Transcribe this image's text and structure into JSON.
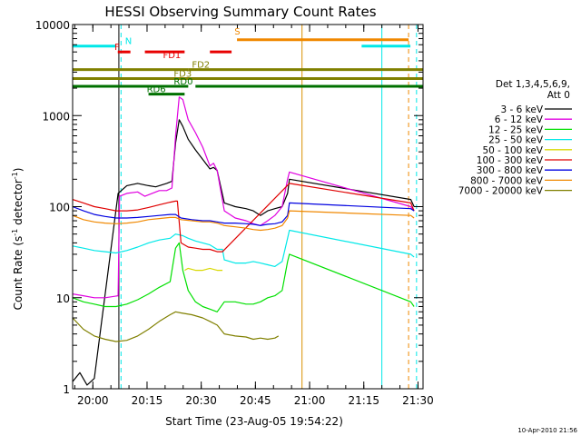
{
  "chart_data": {
    "type": "line",
    "title": "HESSI Observing Summary Count Rates",
    "xlabel": "Start Time (23-Aug-05 19:54:22)",
    "ylabel_main": "Count Rate (s",
    "ylabel_sup1": "-1",
    "ylabel_mid": " detector",
    "ylabel_sup2": "-1",
    "ylabel_end": ")",
    "footer": "10-Apr-2010 21:56",
    "y_scale": "log",
    "ylim": [
      1,
      10000
    ],
    "xlim_min": [
      0,
      97
    ],
    "y_ticks": [
      {
        "value": 1,
        "label": "1"
      },
      {
        "value": 10,
        "label": "10"
      },
      {
        "value": 100,
        "label": "100"
      },
      {
        "value": 1000,
        "label": "1000"
      },
      {
        "value": 10000,
        "label": "10000"
      }
    ],
    "x_ticks": [
      {
        "min": 5.6,
        "label": "20:00"
      },
      {
        "min": 20.6,
        "label": "20:15"
      },
      {
        "min": 35.6,
        "label": "20:30"
      },
      {
        "min": 50.6,
        "label": "20:45"
      },
      {
        "min": 65.6,
        "label": "21:00"
      },
      {
        "min": 80.6,
        "label": "21:15"
      },
      {
        "min": 95.6,
        "label": "21:30"
      }
    ],
    "legend": {
      "header1": "Det 1,3,4,5,6,9,",
      "header2": "Att 0",
      "placement": "right",
      "entries": [
        {
          "label": "3 - 6 keV",
          "color": "#000000"
        },
        {
          "label": "6 - 12 keV",
          "color": "#e000e0"
        },
        {
          "label": "12 - 25 keV",
          "color": "#00e000"
        },
        {
          "label": "25 - 50 keV",
          "color": "#00e8e8"
        },
        {
          "label": "50 - 100 keV",
          "color": "#d8d800"
        },
        {
          "label": "100 - 300 keV",
          "color": "#e00000"
        },
        {
          "label": "300 - 800 keV",
          "color": "#0000e0"
        },
        {
          "label": "800 - 7000 keV",
          "color": "#f08800"
        },
        {
          "label": "7000 - 20000 keV",
          "color": "#808000"
        }
      ]
    },
    "flags": [
      {
        "label": "N",
        "color": "#00e8e8",
        "segments": [
          [
            0,
            12
          ],
          [
            80,
            93.5
          ]
        ],
        "y": 5800
      },
      {
        "label": "F",
        "color": "#e80000",
        "segments": [
          [
            12.5,
            16
          ],
          [
            20,
            31
          ],
          [
            38,
            44
          ]
        ],
        "y": 5000
      },
      {
        "label": "S",
        "color": "#f08800",
        "segments": [
          [
            45.5,
            93
          ]
        ],
        "y": 6800
      },
      {
        "label": "FD1",
        "color": "#e80000",
        "segments": [],
        "y": 4100
      },
      {
        "label": "FD2",
        "color": "#808000",
        "segments": [
          [
            0,
            32
          ],
          [
            32,
            97
          ]
        ],
        "y": 3200
      },
      {
        "label": "FD3",
        "color": "#808000",
        "segments": [
          [
            0,
            97
          ]
        ],
        "y": 2550
      },
      {
        "label": "RD0",
        "color": "#007000",
        "segments": [
          [
            0,
            32
          ],
          [
            34,
            97
          ]
        ],
        "y": 2100
      },
      {
        "label": "RD6",
        "color": "#007000",
        "segments": [
          [
            21,
            31
          ]
        ],
        "y": 1720
      }
    ],
    "vlines": [
      {
        "min": 0,
        "color": "#00e8e8",
        "style": "dashed"
      },
      {
        "min": 13.4,
        "color": "#00e8e8",
        "style": "dashed"
      },
      {
        "min": 12.8,
        "color": "#000000",
        "style": "solid"
      },
      {
        "min": 63.5,
        "color": "#d89000",
        "style": "solid"
      },
      {
        "min": 85.6,
        "color": "#00e8e8",
        "style": "solid"
      },
      {
        "min": 93.0,
        "color": "#f08800",
        "style": "dashed"
      },
      {
        "min": 95.2,
        "color": "#00e8e8",
        "style": "dashed"
      }
    ],
    "series": [
      {
        "name": "3 - 6 keV",
        "color": "#000000",
        "points": [
          [
            0,
            1.2
          ],
          [
            2,
            1.5
          ],
          [
            4,
            1.1
          ],
          [
            6,
            1.3
          ],
          [
            12.6,
            140
          ],
          [
            15,
            170
          ],
          [
            18,
            180
          ],
          [
            21,
            170
          ],
          [
            23,
            165
          ],
          [
            26,
            180
          ],
          [
            27.5,
            190
          ],
          [
            28.5,
            500
          ],
          [
            29.5,
            900
          ],
          [
            30.5,
            760
          ],
          [
            32,
            550
          ],
          [
            34,
            420
          ],
          [
            36,
            330
          ],
          [
            38,
            260
          ],
          [
            39,
            270
          ],
          [
            40,
            250
          ],
          [
            42,
            110
          ],
          [
            45,
            100
          ],
          [
            48,
            95
          ],
          [
            50,
            90
          ],
          [
            52,
            80
          ],
          [
            54,
            90
          ],
          [
            56,
            95
          ],
          [
            58,
            100
          ],
          [
            59.5,
            140
          ],
          [
            60,
            200
          ],
          [
            93.6,
            120
          ],
          [
            94.5,
            100
          ]
        ]
      },
      {
        "name": "6 - 12 keV",
        "color": "#e000e0",
        "points": [
          [
            0,
            11
          ],
          [
            3,
            10.5
          ],
          [
            6,
            10
          ],
          [
            9,
            10
          ],
          [
            12.6,
            10.5
          ],
          [
            13,
            130
          ],
          [
            15,
            140
          ],
          [
            18,
            145
          ],
          [
            20,
            130
          ],
          [
            22,
            140
          ],
          [
            24,
            150
          ],
          [
            26,
            150
          ],
          [
            27.5,
            160
          ],
          [
            28.5,
            600
          ],
          [
            29.5,
            1600
          ],
          [
            30.5,
            1500
          ],
          [
            32,
            900
          ],
          [
            34,
            650
          ],
          [
            36,
            450
          ],
          [
            38,
            280
          ],
          [
            39,
            300
          ],
          [
            40,
            250
          ],
          [
            42,
            90
          ],
          [
            45,
            75
          ],
          [
            48,
            70
          ],
          [
            50,
            65
          ],
          [
            52,
            62
          ],
          [
            54,
            70
          ],
          [
            56,
            80
          ],
          [
            58,
            100
          ],
          [
            59.5,
            200
          ],
          [
            60,
            240
          ],
          [
            93.6,
            100
          ],
          [
            94.5,
            90
          ]
        ]
      },
      {
        "name": "12 - 25 keV",
        "color": "#00e000",
        "points": [
          [
            0,
            10
          ],
          [
            3,
            9
          ],
          [
            6,
            8.5
          ],
          [
            9,
            8
          ],
          [
            12,
            8
          ],
          [
            15,
            8.5
          ],
          [
            18,
            9.5
          ],
          [
            21,
            11
          ],
          [
            24,
            13
          ],
          [
            27,
            15
          ],
          [
            28.5,
            35
          ],
          [
            29.5,
            40
          ],
          [
            30.5,
            20
          ],
          [
            32,
            12
          ],
          [
            34,
            9
          ],
          [
            36,
            8
          ],
          [
            38,
            7.5
          ],
          [
            40,
            7
          ],
          [
            42,
            9
          ],
          [
            45,
            9
          ],
          [
            48,
            8.5
          ],
          [
            50,
            8.5
          ],
          [
            52,
            9
          ],
          [
            54,
            10
          ],
          [
            56,
            10.5
          ],
          [
            58,
            12
          ],
          [
            59.5,
            25
          ],
          [
            60,
            30
          ],
          [
            93.6,
            9
          ],
          [
            94.5,
            8
          ]
        ]
      },
      {
        "name": "25 - 50 keV",
        "color": "#00e8e8",
        "points": [
          [
            0,
            37
          ],
          [
            3,
            35
          ],
          [
            6,
            33
          ],
          [
            9,
            32
          ],
          [
            12,
            31
          ],
          [
            15,
            33
          ],
          [
            18,
            36
          ],
          [
            21,
            40
          ],
          [
            24,
            43
          ],
          [
            27,
            45
          ],
          [
            28.5,
            50
          ],
          [
            30.5,
            48
          ],
          [
            32,
            45
          ],
          [
            34,
            42
          ],
          [
            36,
            40
          ],
          [
            38,
            38
          ],
          [
            40,
            34
          ],
          [
            41.5,
            34
          ],
          [
            42,
            26
          ],
          [
            45,
            24
          ],
          [
            48,
            24
          ],
          [
            50,
            25
          ],
          [
            52,
            24
          ],
          [
            54,
            23
          ],
          [
            56,
            22
          ],
          [
            58,
            25
          ],
          [
            59.5,
            45
          ],
          [
            60,
            55
          ],
          [
            93.6,
            30
          ],
          [
            94.5,
            28
          ]
        ]
      },
      {
        "name": "50 - 100 keV",
        "color": "#d8d800",
        "points": [
          [
            31,
            20
          ],
          [
            32,
            21
          ],
          [
            34,
            20
          ],
          [
            36,
            20
          ],
          [
            38,
            21
          ],
          [
            40,
            20
          ],
          [
            41.5,
            20
          ]
        ]
      },
      {
        "name": "100 - 300 keV",
        "color": "#e00000",
        "points": [
          [
            0,
            120
          ],
          [
            3,
            110
          ],
          [
            6,
            100
          ],
          [
            9,
            95
          ],
          [
            12,
            90
          ],
          [
            15,
            90
          ],
          [
            18,
            92
          ],
          [
            21,
            98
          ],
          [
            24,
            105
          ],
          [
            27,
            112
          ],
          [
            28.5,
            115
          ],
          [
            29,
            115
          ],
          [
            30,
            40
          ],
          [
            32,
            36
          ],
          [
            34,
            35
          ],
          [
            36,
            34
          ],
          [
            38,
            34
          ],
          [
            40,
            32
          ],
          [
            41.5,
            32
          ],
          [
            60,
            180
          ],
          [
            93.6,
            110
          ],
          [
            94.5,
            90
          ]
        ]
      },
      {
        "name": "300 - 800 keV",
        "color": "#0000e0",
        "points": [
          [
            0,
            100
          ],
          [
            3,
            90
          ],
          [
            6,
            82
          ],
          [
            9,
            78
          ],
          [
            12,
            75
          ],
          [
            15,
            75
          ],
          [
            18,
            76
          ],
          [
            21,
            78
          ],
          [
            24,
            80
          ],
          [
            27,
            82
          ],
          [
            28.5,
            82
          ],
          [
            30,
            75
          ],
          [
            33,
            72
          ],
          [
            36,
            70
          ],
          [
            38,
            70
          ],
          [
            40,
            68
          ],
          [
            42,
            66
          ],
          [
            45,
            66
          ],
          [
            48,
            65
          ],
          [
            50,
            64
          ],
          [
            52,
            62
          ],
          [
            54,
            64
          ],
          [
            56,
            65
          ],
          [
            58,
            68
          ],
          [
            59.5,
            80
          ],
          [
            60,
            110
          ],
          [
            93.6,
            95
          ],
          [
            94.5,
            90
          ]
        ]
      },
      {
        "name": "800 - 7000 keV",
        "color": "#f08800",
        "points": [
          [
            0,
            80
          ],
          [
            3,
            72
          ],
          [
            6,
            68
          ],
          [
            9,
            66
          ],
          [
            12,
            65
          ],
          [
            15,
            66
          ],
          [
            18,
            68
          ],
          [
            21,
            72
          ],
          [
            24,
            74
          ],
          [
            27,
            76
          ],
          [
            28.5,
            76
          ],
          [
            30,
            72
          ],
          [
            33,
            70
          ],
          [
            36,
            68
          ],
          [
            38,
            68
          ],
          [
            40,
            66
          ],
          [
            42,
            62
          ],
          [
            45,
            60
          ],
          [
            48,
            58
          ],
          [
            50,
            56
          ],
          [
            52,
            55
          ],
          [
            54,
            56
          ],
          [
            56,
            58
          ],
          [
            58,
            62
          ],
          [
            59.5,
            75
          ],
          [
            60,
            90
          ],
          [
            93.6,
            80
          ],
          [
            94.5,
            75
          ]
        ]
      },
      {
        "name": "7000 - 20000 keV",
        "color": "#808000",
        "points": [
          [
            0,
            6
          ],
          [
            3,
            4.5
          ],
          [
            6,
            3.8
          ],
          [
            9,
            3.5
          ],
          [
            12,
            3.3
          ],
          [
            15,
            3.4
          ],
          [
            18,
            3.8
          ],
          [
            21,
            4.5
          ],
          [
            24,
            5.5
          ],
          [
            27,
            6.5
          ],
          [
            28.5,
            7
          ],
          [
            30,
            6.8
          ],
          [
            33,
            6.5
          ],
          [
            36,
            6
          ],
          [
            38,
            5.5
          ],
          [
            40,
            5
          ],
          [
            42,
            4
          ],
          [
            45,
            3.8
          ],
          [
            48,
            3.7
          ],
          [
            50,
            3.5
          ],
          [
            52,
            3.6
          ],
          [
            54,
            3.5
          ],
          [
            56,
            3.6
          ],
          [
            57,
            3.8
          ]
        ]
      }
    ]
  }
}
